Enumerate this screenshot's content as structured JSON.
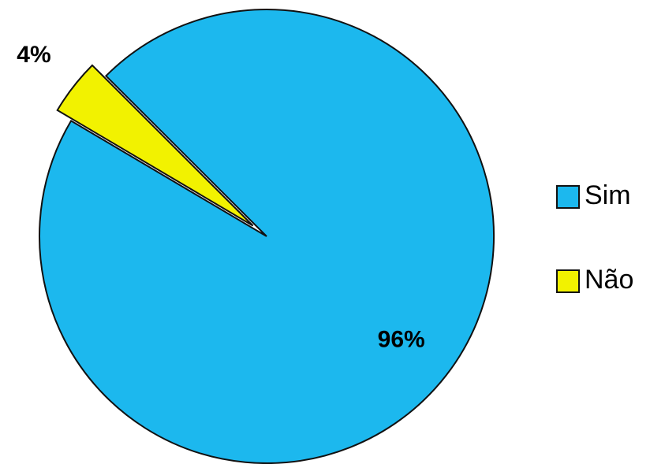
{
  "chart_data": {
    "type": "pie",
    "categories": [
      "Sim",
      "Não"
    ],
    "values": [
      96,
      4
    ],
    "value_labels": [
      "96%",
      "4%"
    ],
    "colors": [
      "#1cb8ee",
      "#f2f200"
    ]
  }
}
